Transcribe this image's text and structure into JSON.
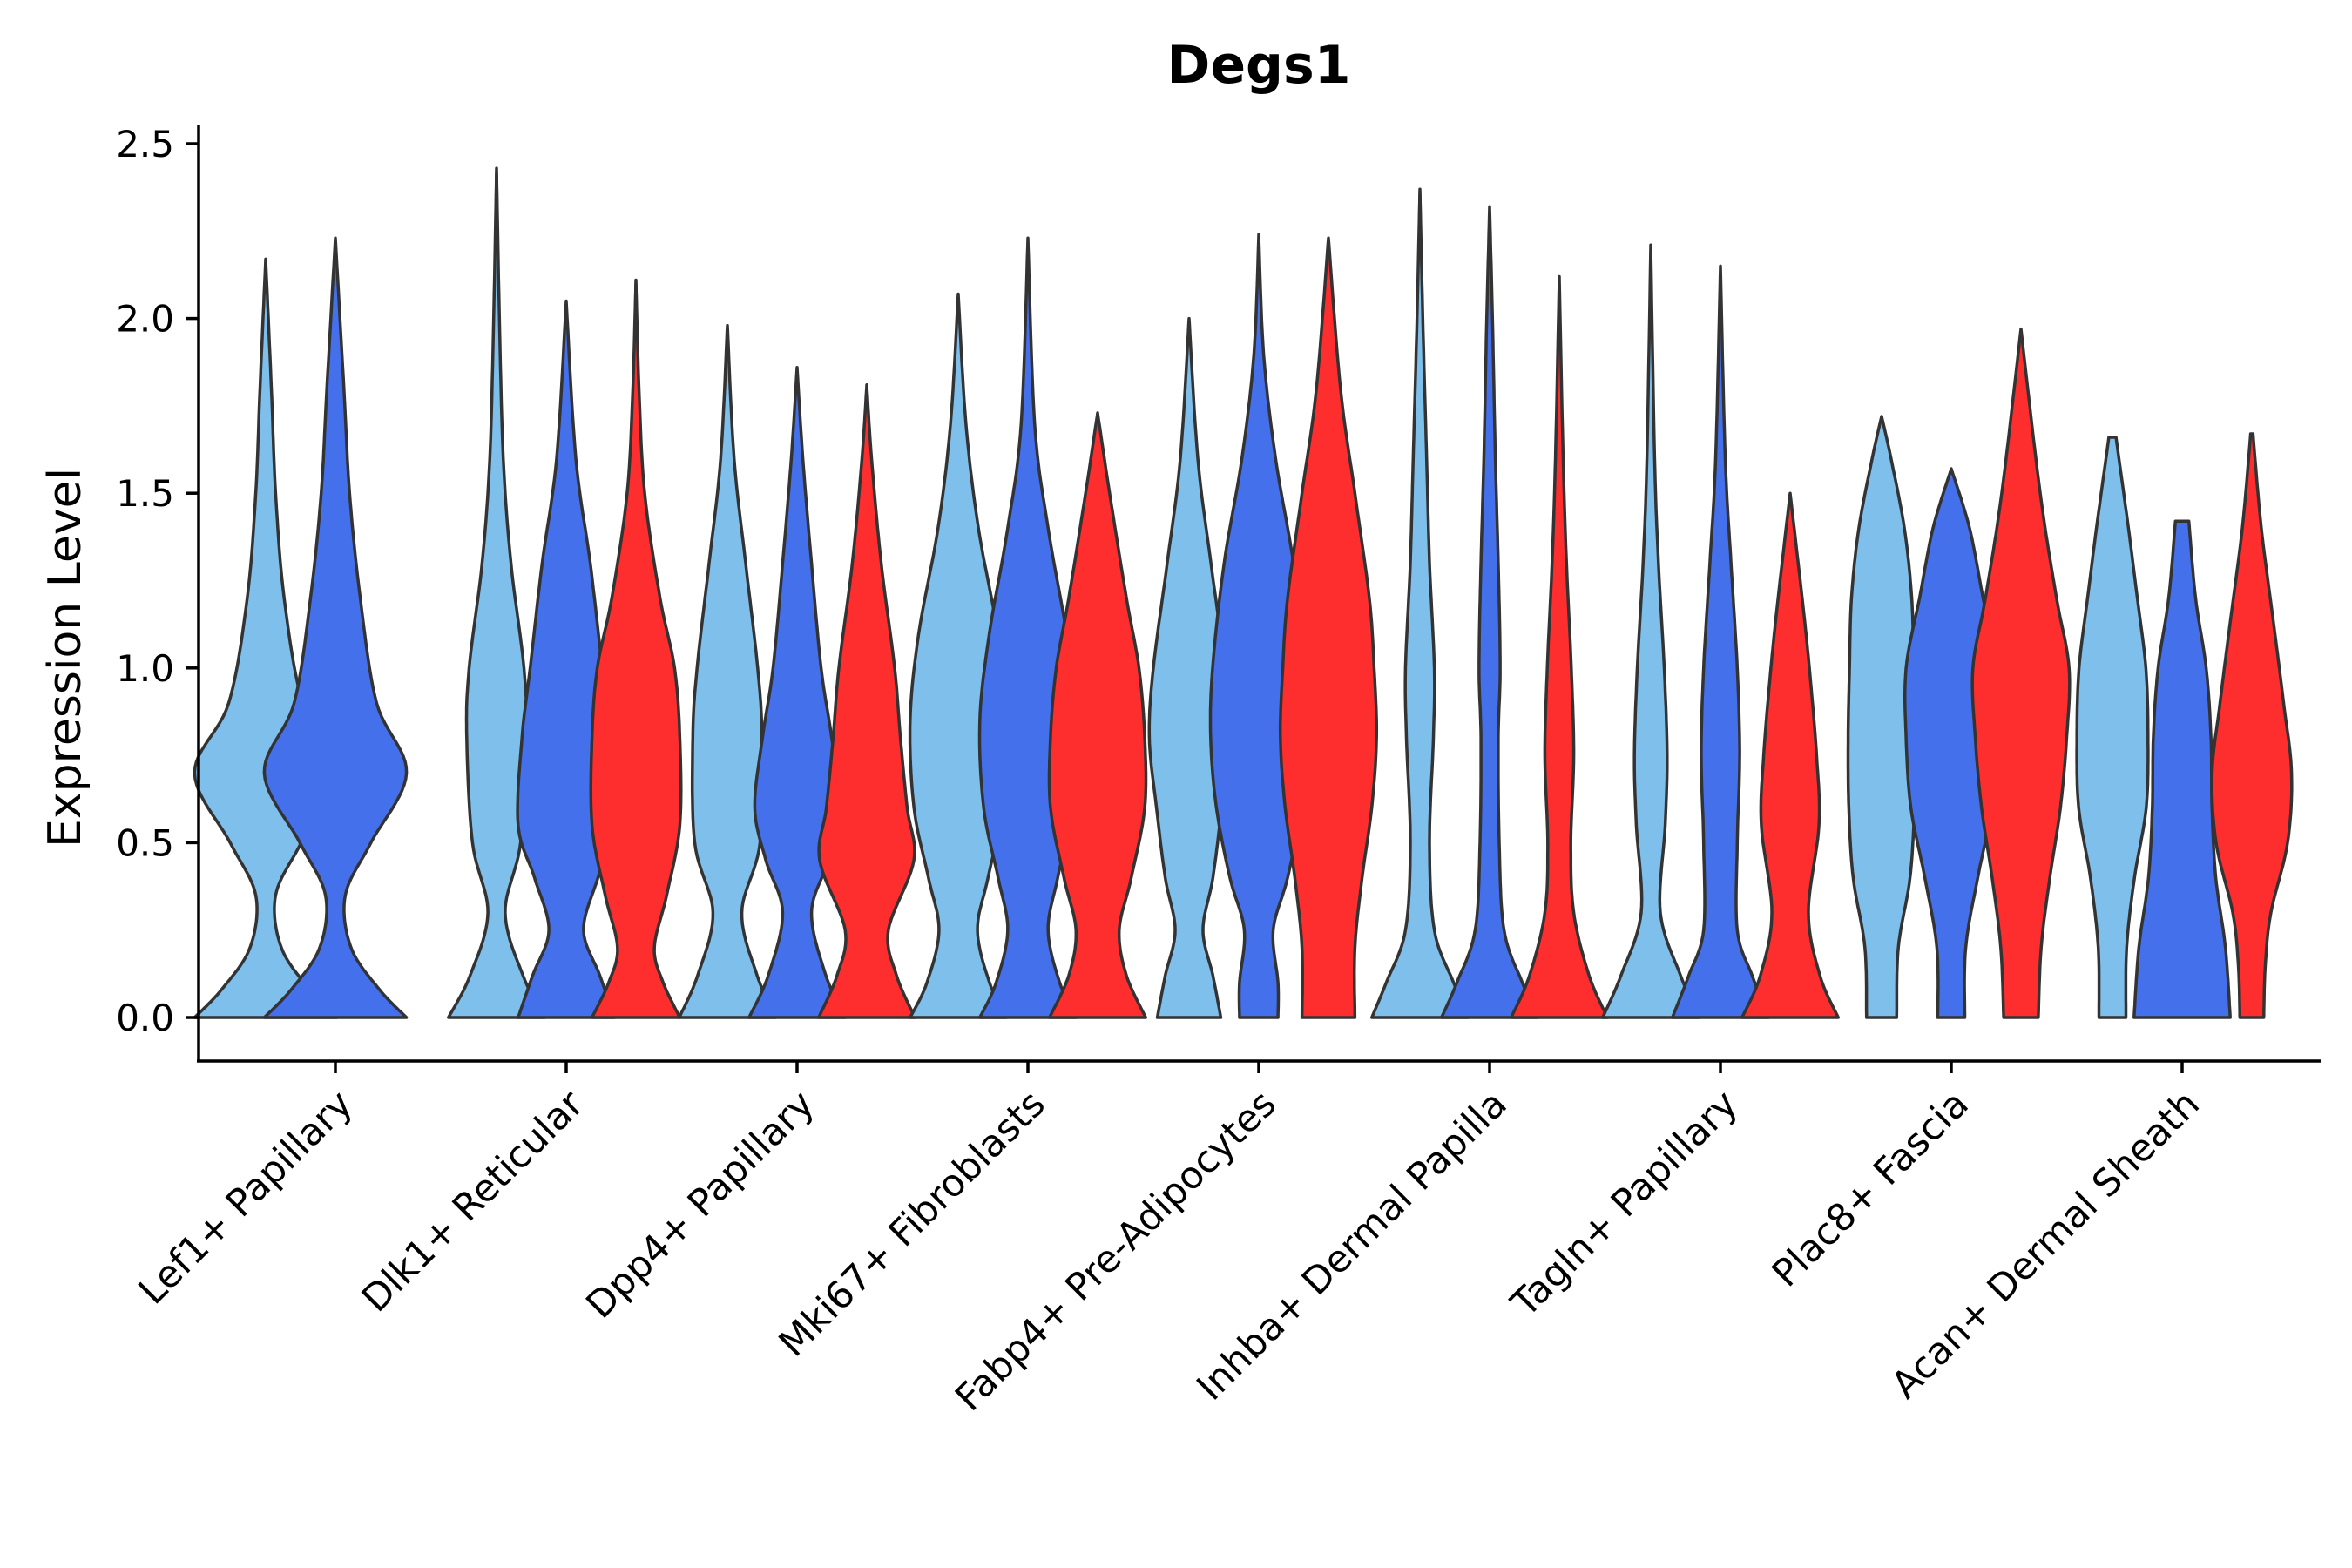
{
  "chart_data": {
    "type": "violin",
    "title": "Degs1",
    "xlabel": "",
    "ylabel": "Expression Level",
    "ylim": [
      -0.12,
      2.55
    ],
    "yticks": [
      "0.0",
      "0.5",
      "1.0",
      "1.5",
      "2.0",
      "2.5"
    ],
    "ytick_values": [
      0.0,
      0.5,
      1.0,
      1.5,
      2.0,
      2.5
    ],
    "legend": "none",
    "grid": false,
    "categories": [
      "Lef1+ Papillary",
      "Dlk1+ Reticular",
      "Dpp4+ Papillary",
      "Mki67+ Fibroblasts",
      "Fabp4+ Pre-Adipocytes",
      "Inhba+ Dermal Papilla",
      "Tagln+ Papillary",
      "Plac8+ Fascia",
      "Acan+ Dermal Sheath"
    ],
    "series_colors": [
      "#7fbfec",
      "#4570ec",
      "#fe2e2e"
    ],
    "violins": [
      {
        "category": 0,
        "series": 0,
        "max": 2.17,
        "half_width": 0.34,
        "profile": [
          [
            0.0,
            1.0
          ],
          [
            0.08,
            0.62
          ],
          [
            0.2,
            0.22
          ],
          [
            0.35,
            0.14
          ],
          [
            0.5,
            0.5
          ],
          [
            0.7,
            1.0
          ],
          [
            0.9,
            0.52
          ],
          [
            1.2,
            0.26
          ],
          [
            1.5,
            0.14
          ],
          [
            1.8,
            0.08
          ],
          [
            2.17,
            0.0
          ]
        ]
      },
      {
        "category": 0,
        "series": 1,
        "max": 2.23,
        "half_width": 0.34,
        "profile": [
          [
            0.0,
            1.0
          ],
          [
            0.08,
            0.62
          ],
          [
            0.2,
            0.22
          ],
          [
            0.35,
            0.14
          ],
          [
            0.5,
            0.5
          ],
          [
            0.7,
            1.0
          ],
          [
            0.9,
            0.58
          ],
          [
            1.2,
            0.35
          ],
          [
            1.5,
            0.2
          ],
          [
            1.8,
            0.12
          ],
          [
            2.23,
            0.0
          ]
        ]
      },
      {
        "category": 1,
        "series": 0,
        "max": 2.43,
        "half_width": 0.23,
        "profile": [
          [
            0.0,
            1.0
          ],
          [
            0.12,
            0.55
          ],
          [
            0.3,
            0.18
          ],
          [
            0.5,
            0.5
          ],
          [
            0.8,
            0.62
          ],
          [
            1.0,
            0.57
          ],
          [
            1.3,
            0.3
          ],
          [
            1.6,
            0.14
          ],
          [
            2.0,
            0.06
          ],
          [
            2.43,
            0.0
          ]
        ]
      },
      {
        "category": 1,
        "series": 1,
        "max": 2.05,
        "half_width": 0.23,
        "profile": [
          [
            0.0,
            1.0
          ],
          [
            0.12,
            0.7
          ],
          [
            0.25,
            0.36
          ],
          [
            0.4,
            0.66
          ],
          [
            0.55,
            1.0
          ],
          [
            0.8,
            0.92
          ],
          [
            1.0,
            0.75
          ],
          [
            1.3,
            0.5
          ],
          [
            1.6,
            0.2
          ],
          [
            2.05,
            0.0
          ]
        ]
      },
      {
        "category": 1,
        "series": 2,
        "max": 2.11,
        "half_width": 0.21,
        "profile": [
          [
            0.0,
            1.0
          ],
          [
            0.1,
            0.62
          ],
          [
            0.2,
            0.42
          ],
          [
            0.35,
            0.7
          ],
          [
            0.55,
            1.0
          ],
          [
            0.8,
            1.0
          ],
          [
            1.0,
            0.88
          ],
          [
            1.2,
            0.55
          ],
          [
            1.5,
            0.2
          ],
          [
            1.8,
            0.07
          ],
          [
            2.11,
            0.0
          ]
        ]
      },
      {
        "category": 2,
        "series": 0,
        "max": 1.98,
        "half_width": 0.23,
        "profile": [
          [
            0.0,
            1.0
          ],
          [
            0.12,
            0.62
          ],
          [
            0.3,
            0.3
          ],
          [
            0.5,
            0.68
          ],
          [
            0.8,
            0.72
          ],
          [
            1.0,
            0.63
          ],
          [
            1.3,
            0.38
          ],
          [
            1.6,
            0.14
          ],
          [
            1.98,
            0.0
          ]
        ]
      },
      {
        "category": 2,
        "series": 1,
        "max": 1.86,
        "half_width": 0.23,
        "profile": [
          [
            0.0,
            1.0
          ],
          [
            0.12,
            0.6
          ],
          [
            0.3,
            0.3
          ],
          [
            0.45,
            0.65
          ],
          [
            0.6,
            0.88
          ],
          [
            0.8,
            0.72
          ],
          [
            1.0,
            0.5
          ],
          [
            1.3,
            0.3
          ],
          [
            1.6,
            0.12
          ],
          [
            1.86,
            0.0
          ]
        ]
      },
      {
        "category": 2,
        "series": 2,
        "max": 1.81,
        "half_width": 0.23,
        "profile": [
          [
            0.0,
            1.0
          ],
          [
            0.12,
            0.62
          ],
          [
            0.25,
            0.45
          ],
          [
            0.45,
            0.98
          ],
          [
            0.6,
            0.84
          ],
          [
            0.8,
            0.7
          ],
          [
            1.0,
            0.58
          ],
          [
            1.3,
            0.3
          ],
          [
            1.6,
            0.1
          ],
          [
            1.81,
            0.0
          ]
        ]
      },
      {
        "category": 3,
        "series": 0,
        "max": 2.07,
        "half_width": 0.23,
        "profile": [
          [
            0.0,
            1.0
          ],
          [
            0.1,
            0.65
          ],
          [
            0.25,
            0.4
          ],
          [
            0.4,
            0.62
          ],
          [
            0.6,
            0.92
          ],
          [
            0.85,
            1.0
          ],
          [
            1.1,
            0.82
          ],
          [
            1.4,
            0.42
          ],
          [
            1.7,
            0.16
          ],
          [
            2.07,
            0.0
          ]
        ]
      },
      {
        "category": 3,
        "series": 1,
        "max": 2.23,
        "half_width": 0.23,
        "profile": [
          [
            0.0,
            1.0
          ],
          [
            0.1,
            0.66
          ],
          [
            0.25,
            0.42
          ],
          [
            0.4,
            0.62
          ],
          [
            0.6,
            0.92
          ],
          [
            0.85,
            1.0
          ],
          [
            1.1,
            0.8
          ],
          [
            1.4,
            0.42
          ],
          [
            1.7,
            0.14
          ],
          [
            2.23,
            0.0
          ]
        ]
      },
      {
        "category": 3,
        "series": 2,
        "max": 1.73,
        "half_width": 0.23,
        "profile": [
          [
            0.0,
            1.0
          ],
          [
            0.12,
            0.6
          ],
          [
            0.25,
            0.45
          ],
          [
            0.4,
            0.7
          ],
          [
            0.6,
            0.98
          ],
          [
            0.8,
            0.98
          ],
          [
            1.0,
            0.86
          ],
          [
            1.2,
            0.6
          ],
          [
            1.5,
            0.25
          ],
          [
            1.73,
            0.0
          ]
        ]
      },
      {
        "category": 4,
        "series": 0,
        "max": 2.0,
        "half_width": 0.19,
        "profile": [
          [
            0.0,
            0.8
          ],
          [
            0.12,
            0.6
          ],
          [
            0.25,
            0.35
          ],
          [
            0.4,
            0.6
          ],
          [
            0.6,
            0.82
          ],
          [
            0.8,
            1.0
          ],
          [
            1.0,
            0.9
          ],
          [
            1.3,
            0.55
          ],
          [
            1.6,
            0.22
          ],
          [
            2.0,
            0.0
          ]
        ]
      },
      {
        "category": 4,
        "series": 1,
        "max": 2.24,
        "half_width": 0.23,
        "profile": [
          [
            0.0,
            0.4
          ],
          [
            0.1,
            0.4
          ],
          [
            0.25,
            0.3
          ],
          [
            0.4,
            0.6
          ],
          [
            0.6,
            0.88
          ],
          [
            0.8,
            1.0
          ],
          [
            1.0,
            0.96
          ],
          [
            1.3,
            0.72
          ],
          [
            1.6,
            0.35
          ],
          [
            1.9,
            0.1
          ],
          [
            2.24,
            0.0
          ]
        ]
      },
      {
        "category": 4,
        "series": 2,
        "max": 2.23,
        "half_width": 0.23,
        "profile": [
          [
            0.0,
            0.55
          ],
          [
            0.2,
            0.55
          ],
          [
            0.4,
            0.7
          ],
          [
            0.6,
            0.9
          ],
          [
            0.8,
            1.0
          ],
          [
            1.0,
            0.95
          ],
          [
            1.2,
            0.85
          ],
          [
            1.5,
            0.55
          ],
          [
            1.8,
            0.25
          ],
          [
            2.23,
            0.0
          ]
        ]
      },
      {
        "category": 5,
        "series": 0,
        "max": 2.37,
        "half_width": 0.23,
        "profile": [
          [
            0.0,
            1.0
          ],
          [
            0.1,
            0.7
          ],
          [
            0.25,
            0.3
          ],
          [
            0.5,
            0.2
          ],
          [
            0.8,
            0.28
          ],
          [
            1.0,
            0.3
          ],
          [
            1.3,
            0.2
          ],
          [
            1.6,
            0.14
          ],
          [
            2.0,
            0.06
          ],
          [
            2.37,
            0.0
          ]
        ]
      },
      {
        "category": 5,
        "series": 1,
        "max": 2.32,
        "half_width": 0.23,
        "profile": [
          [
            0.0,
            1.0
          ],
          [
            0.1,
            0.68
          ],
          [
            0.25,
            0.3
          ],
          [
            0.5,
            0.2
          ],
          [
            0.8,
            0.18
          ],
          [
            1.0,
            0.22
          ],
          [
            1.3,
            0.18
          ],
          [
            1.6,
            0.12
          ],
          [
            2.0,
            0.06
          ],
          [
            2.32,
            0.0
          ]
        ]
      },
      {
        "category": 5,
        "series": 2,
        "max": 2.12,
        "half_width": 0.23,
        "profile": [
          [
            0.0,
            1.0
          ],
          [
            0.12,
            0.62
          ],
          [
            0.3,
            0.3
          ],
          [
            0.5,
            0.24
          ],
          [
            0.75,
            0.3
          ],
          [
            1.0,
            0.25
          ],
          [
            1.3,
            0.15
          ],
          [
            1.6,
            0.08
          ],
          [
            2.12,
            0.0
          ]
        ]
      },
      {
        "category": 6,
        "series": 0,
        "max": 2.21,
        "half_width": 0.23,
        "profile": [
          [
            0.0,
            1.0
          ],
          [
            0.12,
            0.62
          ],
          [
            0.3,
            0.2
          ],
          [
            0.55,
            0.3
          ],
          [
            0.75,
            0.34
          ],
          [
            1.0,
            0.28
          ],
          [
            1.3,
            0.16
          ],
          [
            1.6,
            0.08
          ],
          [
            2.21,
            0.0
          ]
        ]
      },
      {
        "category": 6,
        "series": 1,
        "max": 2.15,
        "half_width": 0.23,
        "profile": [
          [
            0.0,
            1.0
          ],
          [
            0.12,
            0.66
          ],
          [
            0.25,
            0.35
          ],
          [
            0.5,
            0.35
          ],
          [
            0.75,
            0.4
          ],
          [
            1.0,
            0.35
          ],
          [
            1.3,
            0.22
          ],
          [
            1.6,
            0.1
          ],
          [
            2.15,
            0.0
          ]
        ]
      },
      {
        "category": 6,
        "series": 2,
        "max": 1.5,
        "half_width": 0.23,
        "profile": [
          [
            0.0,
            1.0
          ],
          [
            0.12,
            0.62
          ],
          [
            0.3,
            0.38
          ],
          [
            0.55,
            0.6
          ],
          [
            0.75,
            0.55
          ],
          [
            1.0,
            0.4
          ],
          [
            1.2,
            0.25
          ],
          [
            1.5,
            0.0
          ]
        ]
      },
      {
        "category": 7,
        "series": 0,
        "max": 1.72,
        "half_width": 0.16,
        "profile": [
          [
            0.0,
            0.45
          ],
          [
            0.2,
            0.5
          ],
          [
            0.4,
            0.85
          ],
          [
            0.6,
            0.98
          ],
          [
            0.8,
            1.0
          ],
          [
            1.0,
            0.96
          ],
          [
            1.2,
            0.9
          ],
          [
            1.4,
            0.68
          ],
          [
            1.6,
            0.28
          ],
          [
            1.72,
            0.0
          ]
        ]
      },
      {
        "category": 7,
        "series": 1,
        "max": 1.57,
        "half_width": 0.23,
        "profile": [
          [
            0.0,
            0.28
          ],
          [
            0.2,
            0.3
          ],
          [
            0.4,
            0.55
          ],
          [
            0.6,
            0.84
          ],
          [
            0.8,
            0.94
          ],
          [
            1.0,
            0.94
          ],
          [
            1.2,
            0.66
          ],
          [
            1.4,
            0.38
          ],
          [
            1.57,
            0.0
          ]
        ]
      },
      {
        "category": 7,
        "series": 2,
        "max": 1.97,
        "half_width": 0.23,
        "profile": [
          [
            0.0,
            0.36
          ],
          [
            0.2,
            0.42
          ],
          [
            0.4,
            0.6
          ],
          [
            0.6,
            0.82
          ],
          [
            0.8,
            0.95
          ],
          [
            1.0,
            1.0
          ],
          [
            1.2,
            0.74
          ],
          [
            1.5,
            0.4
          ],
          [
            1.97,
            0.0
          ]
        ]
      },
      {
        "category": 8,
        "series": 0,
        "max": 1.66,
        "half_width": 0.17,
        "profile": [
          [
            0.0,
            0.38
          ],
          [
            0.2,
            0.4
          ],
          [
            0.4,
            0.62
          ],
          [
            0.6,
            0.95
          ],
          [
            0.8,
            1.0
          ],
          [
            1.0,
            0.94
          ],
          [
            1.2,
            0.7
          ],
          [
            1.4,
            0.45
          ],
          [
            1.66,
            0.1
          ]
        ]
      },
      {
        "category": 8,
        "series": 1,
        "max": 1.42,
        "half_width": 0.23,
        "profile": [
          [
            0.0,
            1.0
          ],
          [
            0.2,
            0.9
          ],
          [
            0.4,
            0.7
          ],
          [
            0.6,
            0.62
          ],
          [
            0.8,
            0.6
          ],
          [
            1.0,
            0.5
          ],
          [
            1.2,
            0.28
          ],
          [
            1.42,
            0.14
          ]
        ]
      },
      {
        "category": 8,
        "series": 2,
        "max": 1.67,
        "half_width": 0.19,
        "profile": [
          [
            0.0,
            0.3
          ],
          [
            0.15,
            0.34
          ],
          [
            0.3,
            0.48
          ],
          [
            0.5,
            0.9
          ],
          [
            0.7,
            1.0
          ],
          [
            0.9,
            0.8
          ],
          [
            1.1,
            0.58
          ],
          [
            1.4,
            0.24
          ],
          [
            1.67,
            0.03
          ]
        ]
      }
    ]
  }
}
